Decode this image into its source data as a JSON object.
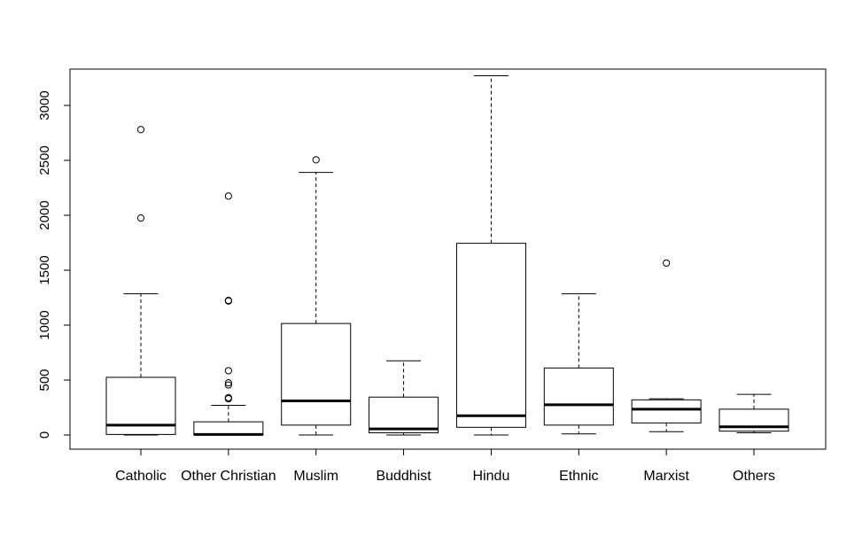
{
  "chart_data": {
    "type": "boxplot",
    "title": "",
    "xlabel": "",
    "ylabel": "",
    "ylim": [
      -120,
      3350
    ],
    "yticks": [
      0,
      500,
      1000,
      1500,
      2000,
      2500,
      3000
    ],
    "ytick_labels": [
      "0",
      "500",
      "1000",
      "1500",
      "2000",
      "2500",
      "3000"
    ],
    "categories": [
      "Catholic",
      "Other Christian",
      "Muslim",
      "Buddhist",
      "Hindu",
      "Ethnic",
      "Marxist",
      "Others"
    ],
    "boxes": [
      {
        "name": "Catholic",
        "whisker_low": 0,
        "q1": 5,
        "median": 90,
        "q3": 525,
        "whisker_high": 1285,
        "outliers": [
          1975,
          2780
        ]
      },
      {
        "name": "Other Christian",
        "whisker_low": 0,
        "q1": 0,
        "median": 5,
        "q3": 120,
        "whisker_high": 270,
        "outliers": [
          330,
          340,
          455,
          475,
          585,
          1220,
          1225,
          2175
        ]
      },
      {
        "name": "Muslim",
        "whisker_low": 0,
        "q1": 90,
        "median": 310,
        "q3": 1015,
        "whisker_high": 2390,
        "outliers": [
          2505
        ]
      },
      {
        "name": "Buddhist",
        "whisker_low": 0,
        "q1": 20,
        "median": 55,
        "q3": 345,
        "whisker_high": 675,
        "outliers": []
      },
      {
        "name": "Hindu",
        "whisker_low": 0,
        "q1": 70,
        "median": 175,
        "q3": 1745,
        "whisker_high": 3270,
        "outliers": []
      },
      {
        "name": "Ethnic",
        "whisker_low": 10,
        "q1": 90,
        "median": 275,
        "q3": 610,
        "whisker_high": 1285,
        "outliers": []
      },
      {
        "name": "Marxist",
        "whisker_low": 30,
        "q1": 110,
        "median": 235,
        "q3": 320,
        "whisker_high": 330,
        "outliers": [
          1565
        ]
      },
      {
        "name": "Others",
        "whisker_low": 20,
        "q1": 35,
        "median": 75,
        "q3": 235,
        "whisker_high": 370,
        "outliers": []
      }
    ]
  }
}
